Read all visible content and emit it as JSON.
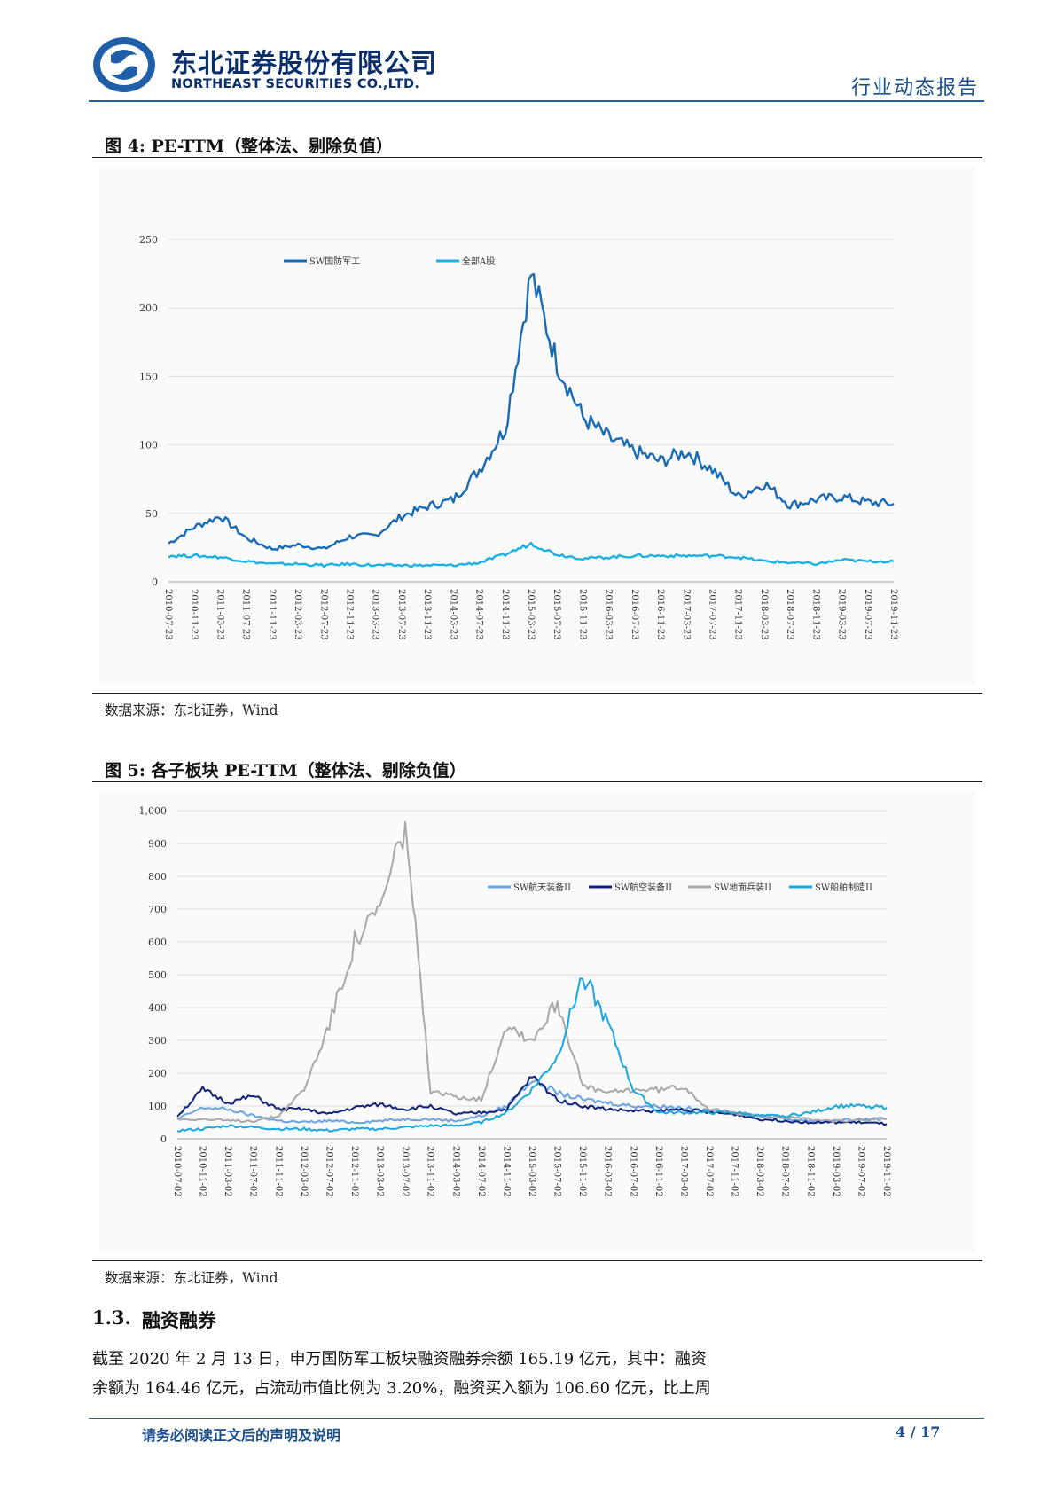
{
  "header": {
    "company_cn": "东北证券股份有限公司",
    "company_en": "NORTHEAST SECURITIES CO.,LTD.",
    "report_type": "行业动态报告"
  },
  "figure4": {
    "title": "图 4:   PE-TTM（整体法、剔除负值）",
    "source": "数据来源：东北证券，Wind"
  },
  "figure5": {
    "title": "图 5:  各子板块 PE-TTM（整体法、剔除负值）",
    "source": "数据来源：东北证券，Wind"
  },
  "section": {
    "number": "1.3.",
    "title": "融资融券",
    "para_line1": "截至 2020 年 2 月 13 日，申万国防军工板块融资融券余额 165.19 亿元，其中：融资",
    "para_line2": "余额为 164.46 亿元，占流动市值比例为 3.20%，融资买入额为 106.60 亿元，比上周"
  },
  "footer": {
    "disclaimer": "请务必阅读正文后的声明及说明",
    "page": "4 / 17"
  },
  "chart_data": [
    {
      "type": "line",
      "title": "PE-TTM（整体法、剔除负值）",
      "ylim": [
        0,
        250
      ],
      "yticks": [
        "0",
        "50",
        "100",
        "150",
        "200",
        "250"
      ],
      "categories": [
        "2010-07-23",
        "2010-11-23",
        "2011-03-23",
        "2011-07-23",
        "2011-11-23",
        "2012-03-23",
        "2012-07-23",
        "2012-11-23",
        "2013-03-23",
        "2013-07-23",
        "2013-11-23",
        "2014-03-23",
        "2014-07-23",
        "2014-11-23",
        "2015-03-23",
        "2015-07-23",
        "2015-11-23",
        "2016-03-23",
        "2016-07-23",
        "2016-11-23",
        "2017-03-23",
        "2017-07-23",
        "2017-11-23",
        "2018-03-23",
        "2018-07-23",
        "2018-11-23",
        "2019-03-23",
        "2019-07-23",
        "2019-11-23"
      ],
      "legend": [
        "SW国防军工",
        "全部A股"
      ],
      "colors": [
        "#1a6bb5",
        "#1ab0e6"
      ],
      "series": [
        {
          "name": "SW国防军工",
          "values": [
            28,
            40,
            48,
            32,
            24,
            27,
            24,
            33,
            34,
            48,
            55,
            60,
            82,
            112,
            225,
            160,
            120,
            105,
            95,
            88,
            95,
            82,
            62,
            72,
            56,
            60,
            62,
            58,
            57
          ]
        },
        {
          "name": "全部A股",
          "values": [
            19,
            19,
            18,
            15,
            13,
            13,
            12,
            13,
            12,
            12,
            12,
            12,
            14,
            20,
            28,
            20,
            17,
            18,
            19,
            19,
            19,
            19,
            18,
            15,
            14,
            13,
            16,
            15,
            15
          ]
        }
      ]
    },
    {
      "type": "line",
      "title": "各子板块 PE-TTM（整体法、剔除负值）",
      "ylim": [
        0,
        1000
      ],
      "yticks": [
        "0",
        "100",
        "200",
        "300",
        "400",
        "500",
        "600",
        "700",
        "800",
        "900",
        "1,000"
      ],
      "categories": [
        "2010-07-02",
        "2010-11-02",
        "2011-03-02",
        "2011-07-02",
        "2011-11-02",
        "2012-03-02",
        "2012-07-02",
        "2012-11-02",
        "2013-03-02",
        "2013-07-02",
        "2013-11-02",
        "2014-03-02",
        "2014-07-02",
        "2014-11-02",
        "2015-03-02",
        "2015-07-02",
        "2015-11-02",
        "2016-03-02",
        "2016-07-02",
        "2016-11-02",
        "2017-03-02",
        "2017-07-02",
        "2017-11-02",
        "2018-03-02",
        "2018-07-02",
        "2018-11-02",
        "2019-03-02",
        "2019-07-02",
        "2019-11-02"
      ],
      "legend": [
        "SW航天装备II",
        "SW航空装备II",
        "SW地面兵装II",
        "SW船舶制造II"
      ],
      "colors": [
        "#6aa4de",
        "#10237a",
        "#a8a8a8",
        "#1aa7e0"
      ],
      "series": [
        {
          "name": "SW航天装备II",
          "values": [
            60,
            95,
            90,
            70,
            55,
            50,
            55,
            50,
            55,
            60,
            60,
            55,
            70,
            100,
            180,
            140,
            120,
            110,
            100,
            100,
            95,
            85,
            80,
            70,
            60,
            55,
            55,
            60,
            60
          ]
        },
        {
          "name": "SW航空装备II",
          "values": [
            70,
            150,
            110,
            130,
            90,
            90,
            75,
            95,
            105,
            90,
            100,
            75,
            80,
            90,
            190,
            120,
            100,
            90,
            85,
            85,
            90,
            80,
            75,
            60,
            55,
            50,
            50,
            50,
            45
          ]
        },
        {
          "name": "SW地面兵装II",
          "values": [
            60,
            60,
            55,
            55,
            70,
            150,
            350,
            600,
            700,
            960,
            140,
            130,
            120,
            350,
            300,
            420,
            160,
            140,
            150,
            150,
            160,
            90,
            80,
            70,
            65,
            60,
            55,
            55,
            60
          ]
        },
        {
          "name": "SW船舶制造II",
          "values": [
            25,
            30,
            40,
            35,
            30,
            30,
            25,
            30,
            30,
            35,
            40,
            40,
            50,
            80,
            150,
            250,
            500,
            350,
            150,
            80,
            80,
            80,
            80,
            70,
            70,
            80,
            100,
            100,
            95
          ]
        }
      ]
    }
  ]
}
